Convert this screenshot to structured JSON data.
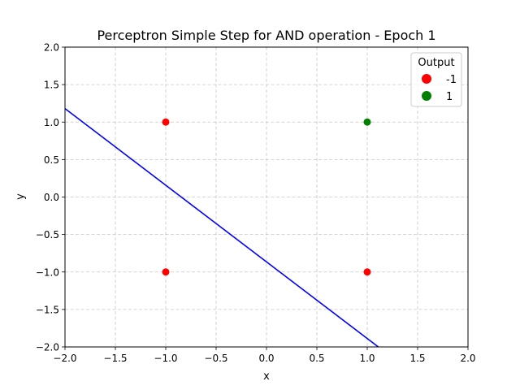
{
  "chart_data": {
    "type": "scatter",
    "title": "Perceptron Simple Step for AND operation - Epoch 1",
    "xlabel": "x",
    "ylabel": "y",
    "xlim": [
      -2.0,
      2.0
    ],
    "ylim": [
      -2.0,
      2.0
    ],
    "x_ticks": [
      -2.0,
      -1.5,
      -1.0,
      -0.5,
      0.0,
      0.5,
      1.0,
      1.5,
      2.0
    ],
    "y_ticks": [
      -2.0,
      -1.5,
      -1.0,
      -0.5,
      0.0,
      0.5,
      1.0,
      1.5,
      2.0
    ],
    "x_tick_labels": [
      "−2.0",
      "−1.5",
      "−1.0",
      "−0.5",
      "0.0",
      "0.5",
      "1.0",
      "1.5",
      "2.0"
    ],
    "y_tick_labels": [
      "−2.0",
      "−1.5",
      "−1.0",
      "−0.5",
      "0.0",
      "0.5",
      "1.0",
      "1.5",
      "2.0"
    ],
    "grid": true,
    "legend": {
      "title": "Output",
      "placement": "top-right",
      "entries": [
        {
          "label": "-1",
          "color": "#ff0000"
        },
        {
          "label": "1",
          "color": "#008000"
        }
      ]
    },
    "points": [
      {
        "x": -1,
        "y": 1,
        "output": -1
      },
      {
        "x": 1,
        "y": 1,
        "output": 1
      },
      {
        "x": -1,
        "y": -1,
        "output": -1
      },
      {
        "x": 1,
        "y": -1,
        "output": -1
      }
    ],
    "decision_line": {
      "color": "#0000ff",
      "from": {
        "x": -2.0,
        "y": 1.18
      },
      "to": {
        "x": 1.11,
        "y": -2.0
      }
    }
  }
}
